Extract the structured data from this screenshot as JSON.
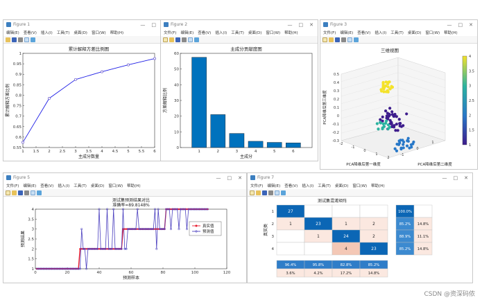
{
  "menu_items": [
    "文件(F)",
    "编辑(E)",
    "查看(V)",
    "插入(I)",
    "工具(T)",
    "桌面(D)",
    "窗口(W)",
    "帮助(H)"
  ],
  "menu_items_cut": [
    "文件(F)",
    "编辑(E)",
    "查看(V)",
    "插入(I)",
    "工具(T)",
    "桌面(D)",
    "窗口(W)",
    "帮助(H)"
  ],
  "windows": {
    "fig1": {
      "title": "Figure 1"
    },
    "fig2": {
      "title": "Figure 2"
    },
    "fig3": {
      "title": "Figure 3"
    },
    "fig5": {
      "title": "Figure 5"
    },
    "fig7": {
      "title": "Figure 7"
    }
  },
  "window_controls": {
    "minimize": "—",
    "maximize": "□",
    "close": "✕"
  },
  "watermark": "CSDN @资深码侬",
  "chart_data": [
    {
      "id": "cumulative",
      "type": "line",
      "title": "累计解释方差比例图",
      "xlabel": "主成分数量",
      "ylabel": "累计解释方差比例",
      "x": [
        1,
        2,
        3,
        4,
        5,
        6
      ],
      "values": [
        0.575,
        0.785,
        0.875,
        0.912,
        0.945,
        0.975
      ],
      "xlim": [
        1,
        6
      ],
      "ylim": [
        0.55,
        1
      ],
      "xticks": [
        "1",
        "1.5",
        "2",
        "2.5",
        "3",
        "3.5",
        "4",
        "4.5",
        "5",
        "5.5",
        "6"
      ],
      "yticks": [
        "0.55",
        "0.6",
        "0.65",
        "0.7",
        "0.75",
        "0.8",
        "0.85",
        "0.9",
        "0.95",
        "1"
      ],
      "colors": {
        "line": "#1f1fe6",
        "marker": "#6a5acd"
      }
    },
    {
      "id": "contribution",
      "type": "bar",
      "title": "主成分贡献度图",
      "xlabel": "主成分",
      "ylabel": "方差解释比例",
      "categories": [
        "1",
        "2",
        "3",
        "4",
        "5",
        "6"
      ],
      "values": [
        57.5,
        21,
        9,
        4,
        3.3,
        3
      ],
      "ylim": [
        0,
        60
      ],
      "yticks": [
        "0",
        "10",
        "20",
        "30",
        "40",
        "50",
        "60"
      ],
      "colors": {
        "bar": "#0072bd"
      }
    },
    {
      "id": "scatter3d",
      "type": "scatter",
      "title": "三维视图",
      "xlabel": "PCA降维后第一维度",
      "ylabel": "PCA降维后第二维度",
      "zlabel": "PCA降维后第三维度",
      "zticks": [
        "-0.3",
        "-0.2",
        "-0.1",
        "0",
        "0.1",
        "0.2",
        "0.3",
        "0.4",
        "0.5"
      ],
      "xticks": [
        "-2",
        "-1",
        "0",
        "1",
        "2"
      ],
      "yticks": [
        "-1",
        "0",
        "1"
      ],
      "colorbar_ticks": [
        "1",
        "1.5",
        "2",
        "2.5",
        "3",
        "3.5",
        "4"
      ],
      "clusters": [
        {
          "class": 1,
          "color": "#3d1c8c",
          "center": [
            0.0,
            0.0,
            0.12
          ],
          "spread": [
            0.6,
            0.4,
            0.08
          ],
          "count": 40
        },
        {
          "class": 2,
          "color": "#2878c8",
          "center": [
            0.5,
            0.3,
            -0.12
          ],
          "spread": [
            0.5,
            0.3,
            0.06
          ],
          "count": 25
        },
        {
          "class": 3,
          "color": "#2bb3a0",
          "center": [
            -0.8,
            0.2,
            0.05
          ],
          "spread": [
            0.3,
            0.3,
            0.05
          ],
          "count": 14
        },
        {
          "class": 4,
          "color": "#f4e22a",
          "center": [
            -0.9,
            0.5,
            0.38
          ],
          "spread": [
            0.2,
            0.3,
            0.05
          ],
          "count": 30
        }
      ]
    },
    {
      "id": "prediction",
      "type": "line",
      "title": "测试集预测结果对比",
      "subtitle": "准确率=89.8148%",
      "xlabel": "预测样本",
      "ylabel": "预测结果",
      "xlim": [
        0,
        120
      ],
      "ylim": [
        1,
        4
      ],
      "xticks": [
        "0",
        "20",
        "40",
        "60",
        "80",
        "100",
        "120"
      ],
      "yticks": [
        "1",
        "1.5",
        "2",
        "2.5",
        "3",
        "3.5",
        "4"
      ],
      "series": [
        {
          "name": "真实值",
          "color": "#e8192c",
          "values": [
            1,
            1,
            1,
            1,
            1,
            1,
            1,
            1,
            1,
            1,
            1,
            1,
            1,
            1,
            1,
            1,
            1,
            1,
            1,
            1,
            1,
            1,
            1,
            1,
            1,
            1,
            1,
            2,
            2,
            2,
            2,
            2,
            2,
            2,
            2,
            2,
            2,
            2,
            2,
            2,
            2,
            2,
            2,
            2,
            2,
            2,
            2,
            2,
            2,
            2,
            2,
            2,
            2,
            2,
            3,
            3,
            3,
            3,
            3,
            3,
            3,
            3,
            3,
            3,
            3,
            3,
            3,
            3,
            3,
            3,
            3,
            3,
            3,
            3,
            3,
            3,
            3,
            3,
            3,
            3,
            3,
            4,
            4,
            4,
            4,
            4,
            4,
            4,
            4,
            4,
            4,
            4,
            4,
            4,
            4,
            4,
            4,
            4,
            4,
            4,
            4,
            4,
            4,
            4,
            4,
            4,
            4,
            4
          ]
        },
        {
          "name": "预测值",
          "color": "#4b3fbf",
          "values": [
            1,
            1,
            1,
            1,
            1,
            1,
            1,
            1,
            1,
            1,
            1,
            1,
            1,
            1,
            1,
            1,
            1,
            1,
            1,
            1,
            1,
            1,
            1,
            1,
            1,
            1,
            1,
            1,
            3,
            2,
            2,
            1,
            2,
            2,
            2,
            2,
            2,
            2,
            2,
            4,
            2,
            2,
            2,
            2,
            4,
            2,
            2,
            2,
            4,
            2,
            2,
            2,
            2,
            2,
            4,
            2,
            2,
            3,
            3,
            3,
            3,
            3,
            3,
            4,
            3,
            3,
            3,
            3,
            3,
            3,
            3,
            3,
            3,
            3,
            4,
            2,
            4,
            3,
            3,
            3,
            3,
            4,
            4,
            4,
            3,
            4,
            4,
            4,
            4,
            3,
            4,
            4,
            4,
            4,
            3,
            4,
            4,
            4,
            4,
            4,
            4,
            4,
            4,
            4,
            4,
            4,
            4,
            4
          ]
        }
      ]
    },
    {
      "id": "confusion",
      "type": "heatmap",
      "title": "测试集混淆矩阵",
      "ylabel": "真实类",
      "row_labels": [
        "1",
        "2",
        "3",
        "4"
      ],
      "matrix": [
        [
          "27",
          "",
          "",
          ""
        ],
        [
          "1",
          "23",
          "1",
          "2"
        ],
        [
          "",
          "1",
          "24",
          "2"
        ],
        [
          "",
          "",
          "4",
          "23"
        ]
      ],
      "row_summary": [
        [
          "100.0%",
          ""
        ],
        [
          "85.2%",
          "14.8%"
        ],
        [
          "88.9%",
          "11.1%"
        ],
        [
          "85.2%",
          "14.8%"
        ]
      ],
      "col_summary": [
        [
          "96.4%",
          "95.8%",
          "82.8%",
          "85.2%"
        ],
        [
          "3.6%",
          "4.2%",
          "17.2%",
          "14.8%"
        ]
      ],
      "colors": {
        "strong": "#0b66b5",
        "light": "#fbe8e0",
        "mid": "#f4c8b6"
      }
    }
  ]
}
